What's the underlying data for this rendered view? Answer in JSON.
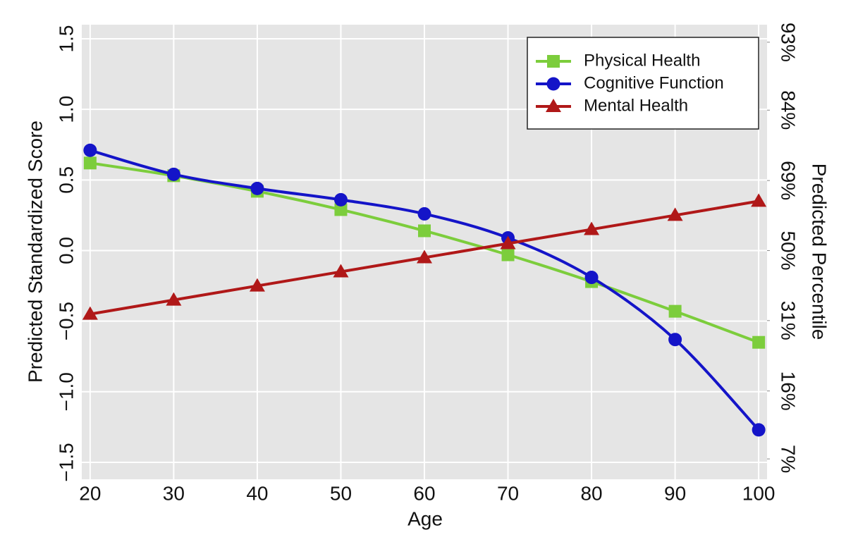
{
  "chart_data": {
    "type": "line",
    "xlabel": "Age",
    "ylabel": "Predicted Standardized Score",
    "y2label": "Predicted Percentile",
    "x": [
      20,
      30,
      40,
      50,
      60,
      70,
      80,
      90,
      100
    ],
    "series": [
      {
        "name": "Physical Health",
        "color": "#7ccd3c",
        "marker": "square",
        "values": [
          0.62,
          0.53,
          0.42,
          0.29,
          0.14,
          -0.03,
          -0.22,
          -0.43,
          -0.65
        ]
      },
      {
        "name": "Cognitive Function",
        "color": "#1414c8",
        "marker": "circle",
        "values": [
          0.71,
          0.54,
          0.44,
          0.36,
          0.26,
          0.09,
          -0.19,
          -0.63,
          -1.27
        ]
      },
      {
        "name": "Mental Health",
        "color": "#b01818",
        "marker": "triangle",
        "values": [
          -0.45,
          -0.35,
          -0.25,
          -0.15,
          -0.05,
          0.05,
          0.15,
          0.25,
          0.35
        ]
      }
    ],
    "xlim": [
      19,
      101
    ],
    "xticks": [
      20,
      30,
      40,
      50,
      60,
      70,
      80,
      90,
      100
    ],
    "ylim": [
      -1.62,
      1.6
    ],
    "yticks": [
      {
        "value": -1.5,
        "label": "−1.5"
      },
      {
        "value": -1.0,
        "label": "−1.0"
      },
      {
        "value": -0.5,
        "label": "−0.5"
      },
      {
        "value": 0,
        "label": "0.0"
      },
      0.5,
      {
        "value": 1.0,
        "label": "1.0"
      },
      1.5
    ],
    "y2scale": "probit",
    "y2lim": [
      5.26,
      94.52
    ],
    "y2ticks": [
      {
        "value": 7,
        "label": "7%"
      },
      {
        "value": 16,
        "label": "16%"
      },
      {
        "value": 31,
        "label": "31%"
      },
      {
        "value": 50,
        "label": "50%"
      },
      {
        "value": 69,
        "label": "69%"
      },
      {
        "value": 84,
        "label": "84%"
      },
      {
        "value": 93,
        "label": "93%"
      }
    ],
    "grid": true,
    "legend": "upper right"
  }
}
